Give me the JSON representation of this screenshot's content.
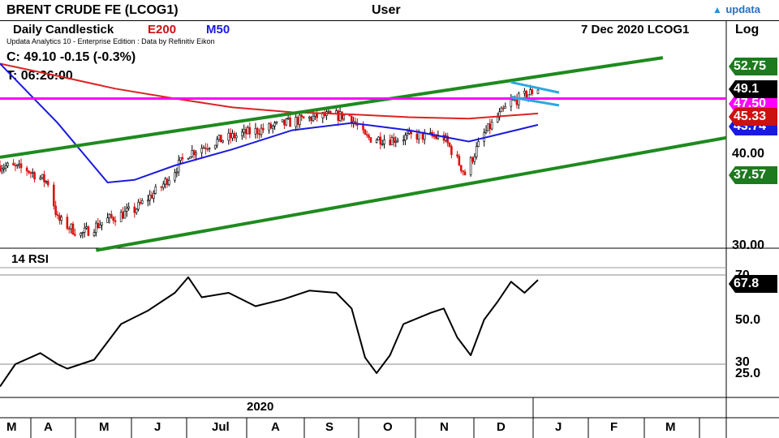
{
  "header": {
    "instrument": "BRENT CRUDE FE (LCOG1)",
    "user": "User",
    "brand": "updata",
    "chart_kind": "Daily Candlestick",
    "ma_long": "E200",
    "ma_short": "M50",
    "date_symbol": "7 Dec 2020  LCOG1",
    "scale_mode": "Log",
    "edition": "Updata Analytics 10 - Enterprise Edition : Data by Refinitiv Eikon"
  },
  "readout": {
    "close": "C: 49.10  -0.15 (-0.3%)",
    "time": "T: 06:26:00"
  },
  "price_axis": {
    "ticks": [
      "40.00",
      "30.00"
    ],
    "badges": [
      {
        "label": "52.75",
        "color": "#1e7a1e"
      },
      {
        "label": "49.1",
        "color": "#000000"
      },
      {
        "label": "47.50",
        "color": "#ff00ff"
      },
      {
        "label": "45.33",
        "color": "#cc1111"
      },
      {
        "label": "43.74",
        "color": "#1a1adf"
      },
      {
        "label": "37.57",
        "color": "#1e7a1e"
      }
    ]
  },
  "rsi": {
    "title": "14 RSI",
    "ticks": [
      "70",
      "50.0",
      "30",
      "25.0"
    ],
    "badge": "67.8"
  },
  "time_axis": {
    "year": "2020",
    "months": [
      "M",
      "A",
      "M",
      "J",
      "Jul",
      "A",
      "S",
      "O",
      "N",
      "D",
      "J",
      "F",
      "M"
    ]
  },
  "colors": {
    "up": "#000000",
    "down": "#dd1111",
    "ema200": "#dd2222",
    "ma50": "#1a1adf",
    "channel": "#1e8a1e",
    "horizontal": "#ff00ff",
    "flag": "#2aa8e0",
    "rsi": "#000000"
  },
  "chart_data": [
    {
      "type": "candlestick",
      "title": "BRENT CRUDE FE (LCOG1)",
      "scale": "log",
      "ylim": [
        30,
        55
      ],
      "y_ticks": [
        30,
        40
      ],
      "x_start": "2020-03",
      "x_end": "2021-03",
      "x_tick_labels": [
        "M",
        "A",
        "M",
        "J",
        "Jul",
        "A",
        "S",
        "O",
        "N",
        "D",
        "J",
        "F",
        "M"
      ],
      "close_path": [
        [
          "2020-03-02",
          38.5
        ],
        [
          "2020-03-16",
          38.0
        ],
        [
          "2020-03-27",
          36.5
        ],
        [
          "2020-04-01",
          32.5
        ],
        [
          "2020-04-13",
          31.0
        ],
        [
          "2020-04-27",
          32.5
        ],
        [
          "2020-05-11",
          33.5
        ],
        [
          "2020-05-25",
          36.0
        ],
        [
          "2020-06-08",
          40.0
        ],
        [
          "2020-06-22",
          41.5
        ],
        [
          "2020-07-06",
          42.5
        ],
        [
          "2020-07-20",
          43.3
        ],
        [
          "2020-08-03",
          44.3
        ],
        [
          "2020-08-17",
          45.0
        ],
        [
          "2020-08-31",
          45.0
        ],
        [
          "2020-09-08",
          42.0
        ],
        [
          "2020-09-21",
          41.8
        ],
        [
          "2020-10-05",
          42.3
        ],
        [
          "2020-10-19",
          42.0
        ],
        [
          "2020-10-30",
          37.5
        ],
        [
          "2020-11-09",
          42.5
        ],
        [
          "2020-11-23",
          47.0
        ],
        [
          "2020-12-01",
          48.0
        ],
        [
          "2020-12-07",
          49.1
        ]
      ],
      "ema200_path": [
        [
          "2020-03-02",
          53.0
        ],
        [
          "2020-04-01",
          51.0
        ],
        [
          "2020-05-01",
          49.0
        ],
        [
          "2020-06-01",
          47.5
        ],
        [
          "2020-07-01",
          46.2
        ],
        [
          "2020-08-01",
          45.5
        ],
        [
          "2020-09-01",
          45.2
        ],
        [
          "2020-10-01",
          44.8
        ],
        [
          "2020-11-01",
          44.6
        ],
        [
          "2020-12-07",
          45.33
        ]
      ],
      "ma50_path": [
        [
          "2020-03-02",
          53.0
        ],
        [
          "2020-04-01",
          44.0
        ],
        [
          "2020-04-27",
          36.5
        ],
        [
          "2020-05-11",
          36.8
        ],
        [
          "2020-06-01",
          38.5
        ],
        [
          "2020-07-01",
          40.5
        ],
        [
          "2020-08-01",
          43.0
        ],
        [
          "2020-09-01",
          44.0
        ],
        [
          "2020-10-01",
          43.0
        ],
        [
          "2020-11-01",
          41.5
        ],
        [
          "2020-12-07",
          43.74
        ]
      ],
      "channel_upper": [
        [
          "2020-03-02",
          39.5
        ],
        [
          "2021-02-10",
          54.0
        ]
      ],
      "channel_lower": [
        [
          "2020-04-21",
          29.5
        ],
        [
          "2021-03-15",
          42.0
        ]
      ],
      "horizontal_level": 47.5,
      "flag_upper": [
        [
          "2020-11-23",
          50.0
        ],
        [
          "2020-12-18",
          48.4
        ]
      ],
      "flag_lower": [
        [
          "2020-11-23",
          47.7
        ],
        [
          "2020-12-18",
          46.5
        ]
      ],
      "last_close": 49.1,
      "change": -0.15,
      "change_pct": -0.3
    },
    {
      "type": "line",
      "title": "14 RSI",
      "ylim": [
        20,
        75
      ],
      "y_ticks": [
        25,
        30,
        50,
        70
      ],
      "values": [
        [
          "2020-03-02",
          20
        ],
        [
          "2020-03-10",
          30
        ],
        [
          "2020-03-23",
          35
        ],
        [
          "2020-04-01",
          30
        ],
        [
          "2020-04-06",
          28
        ],
        [
          "2020-04-20",
          32
        ],
        [
          "2020-05-04",
          48
        ],
        [
          "2020-05-18",
          54
        ],
        [
          "2020-06-01",
          62
        ],
        [
          "2020-06-08",
          69
        ],
        [
          "2020-06-15",
          60
        ],
        [
          "2020-06-29",
          62
        ],
        [
          "2020-07-13",
          56
        ],
        [
          "2020-07-27",
          59
        ],
        [
          "2020-08-10",
          63
        ],
        [
          "2020-08-24",
          62
        ],
        [
          "2020-09-01",
          55
        ],
        [
          "2020-09-08",
          33
        ],
        [
          "2020-09-14",
          26
        ],
        [
          "2020-09-21",
          34
        ],
        [
          "2020-09-28",
          48
        ],
        [
          "2020-10-12",
          53
        ],
        [
          "2020-10-19",
          55
        ],
        [
          "2020-10-26",
          42
        ],
        [
          "2020-11-02",
          34
        ],
        [
          "2020-11-09",
          50
        ],
        [
          "2020-11-16",
          58
        ],
        [
          "2020-11-23",
          67
        ],
        [
          "2020-11-30",
          62
        ],
        [
          "2020-12-07",
          67.8
        ]
      ]
    }
  ]
}
